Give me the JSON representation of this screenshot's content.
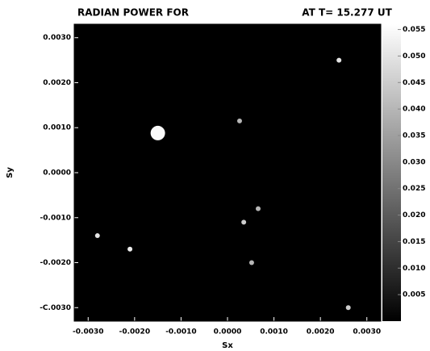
{
  "chart_data": {
    "type": "heatmap",
    "title": "RADIAN POWER FOR",
    "subtitle": "AT T= 15.277 UT",
    "x_label": "Sx",
    "y_label": "Sy",
    "xlim": [
      -0.0033,
      0.0033
    ],
    "ylim": [
      -0.0033,
      0.0033
    ],
    "xticks": [
      {
        "value": -0.003,
        "label": "-0.0030"
      },
      {
        "value": -0.002,
        "label": "-0.0020"
      },
      {
        "value": -0.001,
        "label": "-0.0010"
      },
      {
        "value": 0,
        "label": "0.0000"
      },
      {
        "value": 0.001,
        "label": "0.0010"
      },
      {
        "value": 0.002,
        "label": "0.0020"
      },
      {
        "value": 0.003,
        "label": "0.0030"
      }
    ],
    "yticks": [
      {
        "value": 0.003,
        "label": "0.0030"
      },
      {
        "value": 0.002,
        "label": "0.0020"
      },
      {
        "value": 0.001,
        "label": "0.0010"
      },
      {
        "value": 0,
        "label": "0.0000"
      },
      {
        "value": -0.001,
        "label": "-0.0010"
      },
      {
        "value": -0.002,
        "label": "-0.0020"
      },
      {
        "value": -0.003,
        "label": "-C.0030"
      }
    ],
    "clim": [
      0,
      0.056
    ],
    "cticks": [
      0.055,
      {
        "value": 0.05,
        "label": "0.050"
      },
      0.045,
      {
        "value": 0.04,
        "label": "0.040"
      },
      0.035,
      {
        "value": 0.03,
        "label": "0.030"
      },
      0.025,
      {
        "value": 0.02,
        "label": "0.020"
      },
      0.015,
      {
        "value": 0.01,
        "label": "0.010"
      },
      0.005
    ],
    "background_color": "#000000",
    "spot_color": "#ffffff",
    "x": [
      -0.0015,
      -0.0028,
      -0.0021,
      0.00035,
      0.00066,
      0.00026,
      0.0024,
      0.0026,
      0.00052
    ],
    "y": [
      0.00088,
      -0.0014,
      -0.0017,
      -0.0011,
      -0.0008,
      0.00115,
      0.0025,
      -0.003,
      -0.002
    ],
    "values": [
      0.055,
      0.05,
      0.052,
      0.045,
      0.04,
      0.04,
      0.05,
      0.045,
      0.04
    ]
  }
}
